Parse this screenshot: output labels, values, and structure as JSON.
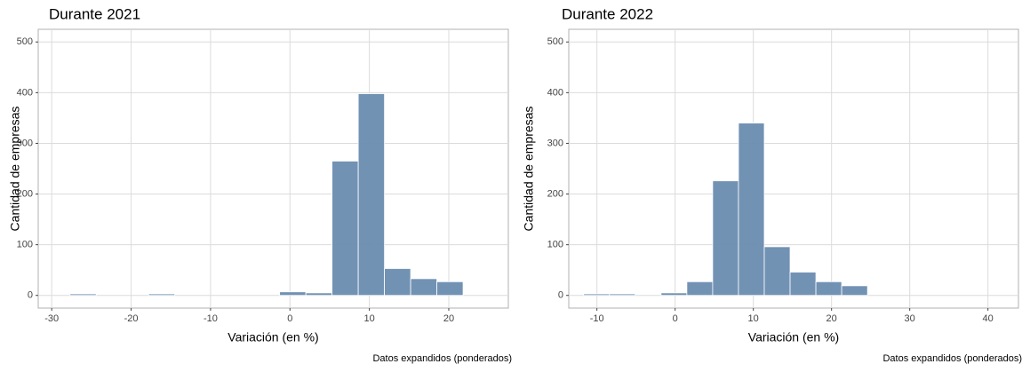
{
  "chart_data": [
    {
      "type": "histogram",
      "title": "Durante 2021",
      "xlabel": "Variación (en %)",
      "ylabel": "Cantidad de empresas",
      "caption": "Datos expandidos (ponderados)",
      "bins": [
        -27.7,
        -24.4,
        -21.1,
        -17.8,
        -14.5,
        -11.2,
        -7.9,
        -4.6,
        -1.3,
        2.0,
        5.3,
        8.6,
        11.9,
        15.2,
        18.5,
        21.8
      ],
      "values": [
        3,
        0,
        0,
        3,
        0,
        0,
        0,
        0,
        7,
        5,
        265,
        398,
        53,
        33,
        27
      ],
      "color": "#6a8cb0",
      "xlim": [
        -31.7,
        27.5
      ],
      "ylim": [
        -25,
        525
      ],
      "xticks": [
        -30,
        -20,
        -10,
        0,
        10,
        20
      ],
      "yticks": [
        0,
        100,
        200,
        300,
        400,
        500
      ],
      "grid": true
    },
    {
      "type": "histogram",
      "title": "Durante 2022",
      "xlabel": "Variación (en %)",
      "ylabel": "Cantidad de empresas",
      "caption": "Datos expandidos (ponderados)",
      "bins": [
        -11.7,
        -8.4,
        -5.1,
        -1.8,
        1.5,
        4.8,
        8.1,
        11.4,
        14.7,
        18.0,
        21.3,
        24.6
      ],
      "values": [
        3,
        3,
        0,
        5,
        27,
        226,
        340,
        96,
        46,
        27,
        19
      ],
      "color": "#6a8cb0",
      "xlim": [
        -13.6,
        43.9
      ],
      "ylim": [
        -25,
        525
      ],
      "xticks": [
        -10,
        0,
        10,
        20,
        30,
        40
      ],
      "yticks": [
        0,
        100,
        200,
        300,
        400,
        500
      ],
      "grid": true
    }
  ]
}
